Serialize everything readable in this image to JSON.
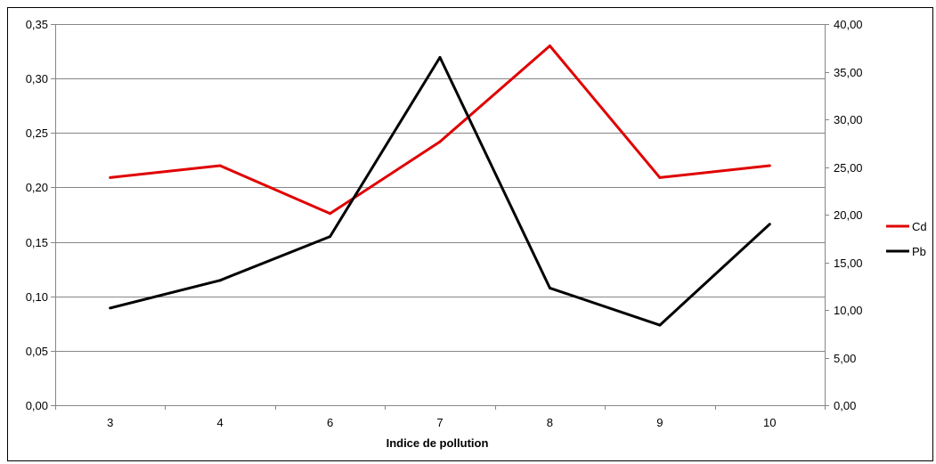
{
  "chart_data": {
    "type": "line",
    "title": "",
    "xlabel": "Indice de pollution",
    "ylabel_left": "",
    "ylabel_right": "",
    "categories": [
      "3",
      "4",
      "6",
      "7",
      "8",
      "9",
      "10"
    ],
    "y_left": {
      "range": [
        0,
        0.35
      ],
      "ticks": [
        0,
        0.05,
        0.1,
        0.15,
        0.2,
        0.25,
        0.3,
        0.35
      ],
      "tick_labels": [
        "0,00",
        "0,05",
        "0,10",
        "0,15",
        "0,20",
        "0,25",
        "0,30",
        "0,35"
      ]
    },
    "y_right": {
      "range": [
        0,
        40
      ],
      "ticks": [
        0,
        5,
        10,
        15,
        20,
        25,
        30,
        35,
        40
      ],
      "tick_labels": [
        "0,00",
        "5,00",
        "10,00",
        "15,00",
        "20,00",
        "25,00",
        "30,00",
        "35,00",
        "40,00"
      ]
    },
    "series": [
      {
        "name": "Cd",
        "axis": "left",
        "color": "#e00000",
        "values": [
          0.209,
          0.22,
          0.176,
          0.242,
          0.33,
          0.209,
          0.22
        ]
      },
      {
        "name": "Pb",
        "axis": "right",
        "color": "#000000",
        "values": [
          10.2,
          13.1,
          17.7,
          36.5,
          12.3,
          8.4,
          19.0
        ]
      }
    ],
    "grid": true,
    "legend_position": "right"
  }
}
